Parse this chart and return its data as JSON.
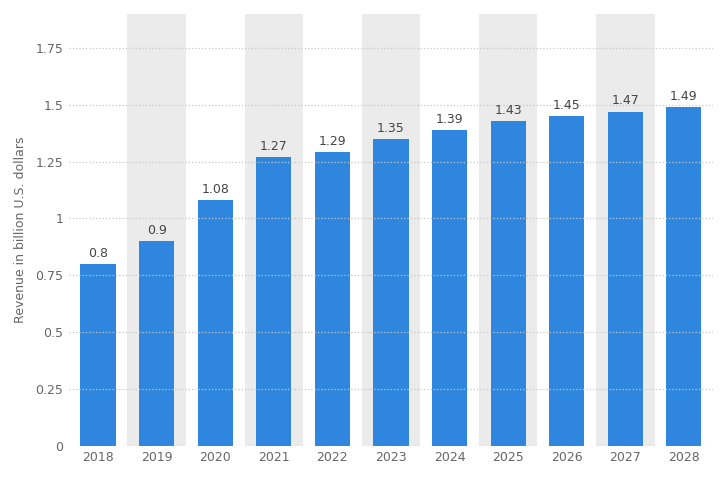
{
  "years": [
    "2018",
    "2019",
    "2020",
    "2021",
    "2022",
    "2023",
    "2024",
    "2025",
    "2026",
    "2027",
    "2028"
  ],
  "values": [
    0.8,
    0.9,
    1.08,
    1.27,
    1.29,
    1.35,
    1.39,
    1.43,
    1.45,
    1.47,
    1.49
  ],
  "bar_color": "#2e86de",
  "background_color": "#ffffff",
  "plot_bg_color": "#ffffff",
  "alt_col_color": "#ebebeb",
  "ylabel": "Revenue in billion U.S. dollars",
  "ylim": [
    0,
    1.9
  ],
  "yticks": [
    0,
    0.25,
    0.5,
    0.75,
    1.0,
    1.25,
    1.5,
    1.75
  ],
  "grid_color": "#c8c8c8",
  "ylabel_fontsize": 9,
  "xtick_fontsize": 9,
  "ytick_fontsize": 9,
  "bar_label_fontsize": 9,
  "bar_label_color": "#444444",
  "bar_width": 0.6,
  "top_bar": "#e8eef5"
}
